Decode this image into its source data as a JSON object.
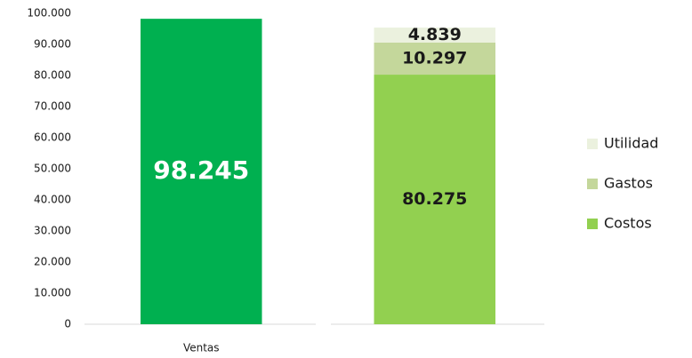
{
  "chart_data": {
    "type": "stacked_bar",
    "categories": [
      "Ventas",
      null
    ],
    "series": [
      {
        "color": "#00b050",
        "values": [
          98245,
          null
        ],
        "value_labels": [
          "98.245",
          null
        ],
        "label_color": "#ffffff"
      },
      {
        "name": "Costos",
        "color": "#92d050",
        "values": [
          null,
          80275
        ],
        "value_labels": [
          null,
          "80.275"
        ],
        "label_color": "#1a1a1a"
      },
      {
        "name": "Gastos",
        "color": "#c4d79b",
        "values": [
          null,
          10297
        ],
        "value_labels": [
          null,
          "10.297"
        ],
        "label_color": "#1a1a1a"
      },
      {
        "name": "Utilidad",
        "color": "#ebf1de",
        "values": [
          null,
          4839
        ],
        "value_labels": [
          null,
          "4.839"
        ],
        "label_color": "#1a1a1a"
      }
    ],
    "ylim": [
      0,
      100000
    ],
    "yticks": [
      0,
      {
        "value": 10000,
        "label": "10.000"
      },
      {
        "value": 20000,
        "label": "20.000"
      },
      {
        "value": 30000,
        "label": "30.000"
      },
      {
        "value": 40000,
        "label": "40.000"
      },
      {
        "value": 50000,
        "label": "50.000"
      },
      {
        "value": 60000,
        "label": "60.000"
      },
      {
        "value": 70000,
        "label": "70.000"
      },
      {
        "value": 80000,
        "label": "80.000"
      },
      {
        "value": 90000,
        "label": "90.000"
      },
      {
        "value": 100000,
        "label": "100.000"
      }
    ],
    "grid": false,
    "legend": "right"
  }
}
